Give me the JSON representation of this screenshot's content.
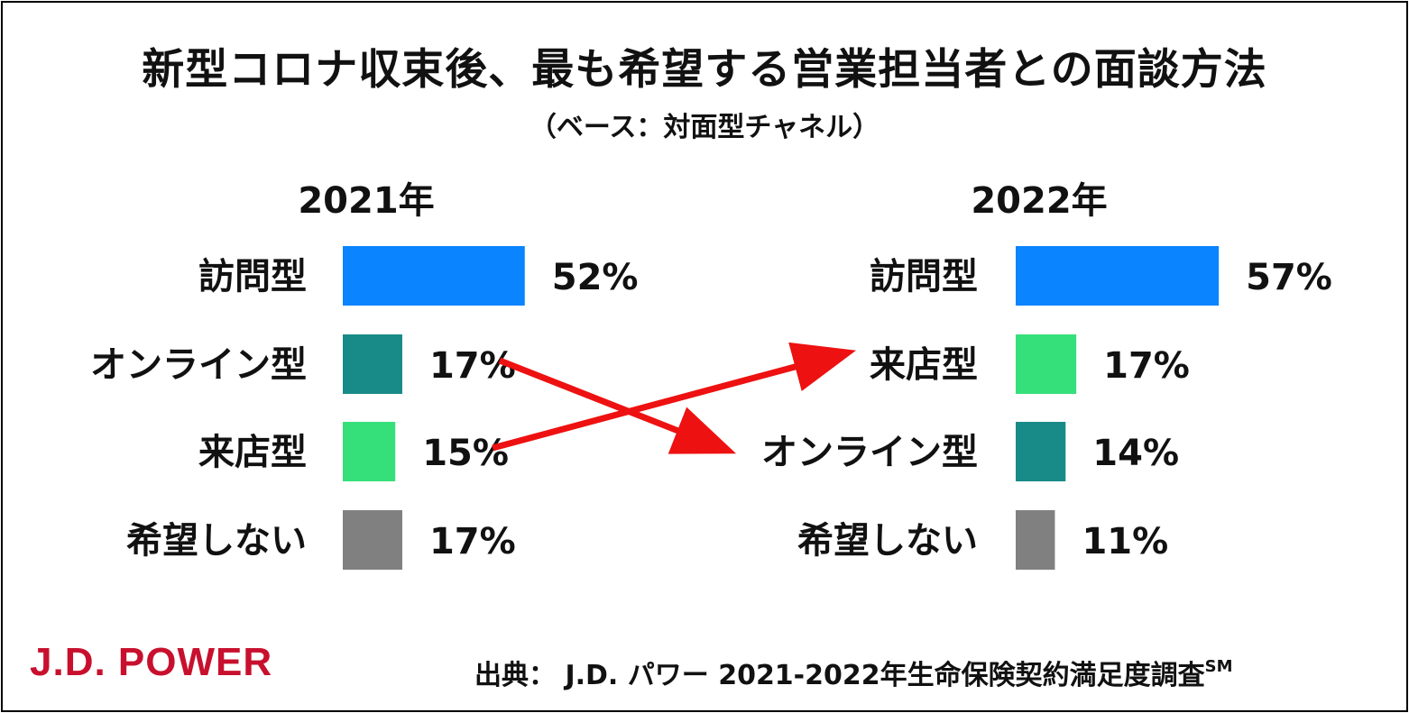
{
  "title": "新型コロナ収束後、最も希望する営業担当者との面談方法",
  "subtitle": "（ベース：対面型チャネル）",
  "colors": {
    "visit": "#0a84ff",
    "online": "#188a87",
    "store": "#35e07a",
    "none": "#808080",
    "arrow": "#ee1111",
    "logo": "#c8102e"
  },
  "chart_data": [
    {
      "type": "bar",
      "orientation": "horizontal",
      "title": "2021年",
      "categories": [
        "訪問型",
        "オンライン型",
        "来店型",
        "希望しない"
      ],
      "values": [
        52,
        17,
        15,
        17
      ],
      "value_labels": [
        "52%",
        "17%",
        "15%",
        "17%"
      ],
      "unit": "%"
    },
    {
      "type": "bar",
      "orientation": "horizontal",
      "title": "2022年",
      "categories": [
        "訪問型",
        "来店型",
        "オンライン型",
        "希望しない"
      ],
      "values": [
        57,
        17,
        14,
        11
      ],
      "value_labels": [
        "57%",
        "17%",
        "14%",
        "11%"
      ],
      "unit": "%"
    }
  ],
  "annotations": [
    {
      "type": "arrow",
      "from": "2021年 オンライン型",
      "to": "2022年 オンライン型"
    },
    {
      "type": "arrow",
      "from": "2021年 来店型",
      "to": "2022年 来店型"
    }
  ],
  "logo_text": "J.D. POWER",
  "source": {
    "text": "出典：  J.D. パワー 2021-2022年生命保険契約満足度調査",
    "superscript": "SM"
  }
}
